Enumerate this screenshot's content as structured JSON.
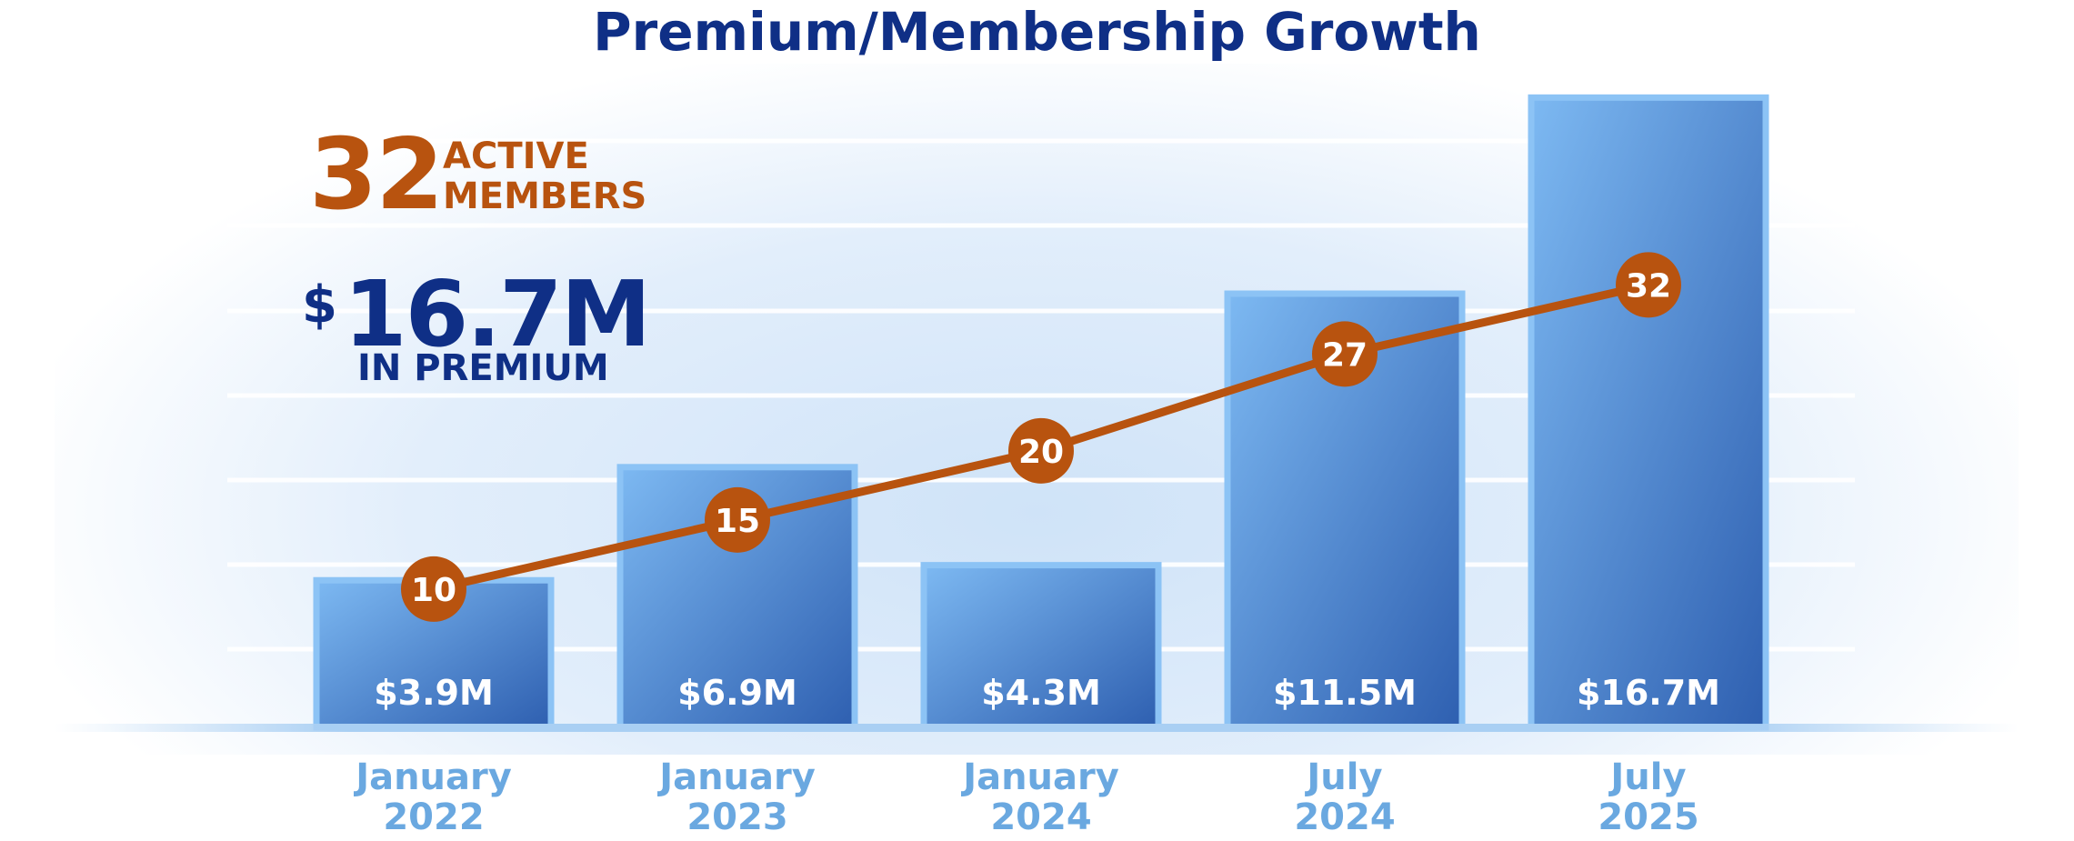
{
  "title": "Premium/Membership Growth",
  "stats": {
    "members_value": "32",
    "members_label_1": "ACTIVE",
    "members_label_2": "MEMBERS",
    "premium_dollar": "$",
    "premium_value": "16.7M",
    "premium_label": "IN PREMIUM"
  },
  "colors": {
    "title": "#0f2f86",
    "accent_orange": "#b8530f",
    "bar_light": "#7db9f2",
    "bar_dark": "#2e5fb0",
    "bar_border": "#8cc3f5",
    "axis_label": "#6aa8e0",
    "grid": "#ffffff"
  },
  "chart_data": {
    "type": "bar",
    "title": "Premium/Membership Growth",
    "categories": [
      [
        "January",
        "2022"
      ],
      [
        "January",
        "2023"
      ],
      [
        "January",
        "2024"
      ],
      [
        "July",
        "2024"
      ],
      [
        "July",
        "2025"
      ]
    ],
    "series": [
      {
        "name": "Premium",
        "type": "bar",
        "values": [
          3.9,
          6.9,
          4.3,
          11.5,
          16.7
        ],
        "labels": [
          "$3.9M",
          "$6.9M",
          "$4.3M",
          "$11.5M",
          "$16.7M"
        ]
      },
      {
        "name": "Active Members",
        "type": "line",
        "values": [
          10,
          15,
          20,
          27,
          32
        ],
        "labels": [
          "10",
          "15",
          "20",
          "27",
          "32"
        ]
      }
    ],
    "ylim_premium": [
      0,
      17.6
    ],
    "ylim_members": [
      0,
      48
    ],
    "grid": true,
    "legend": "none"
  }
}
